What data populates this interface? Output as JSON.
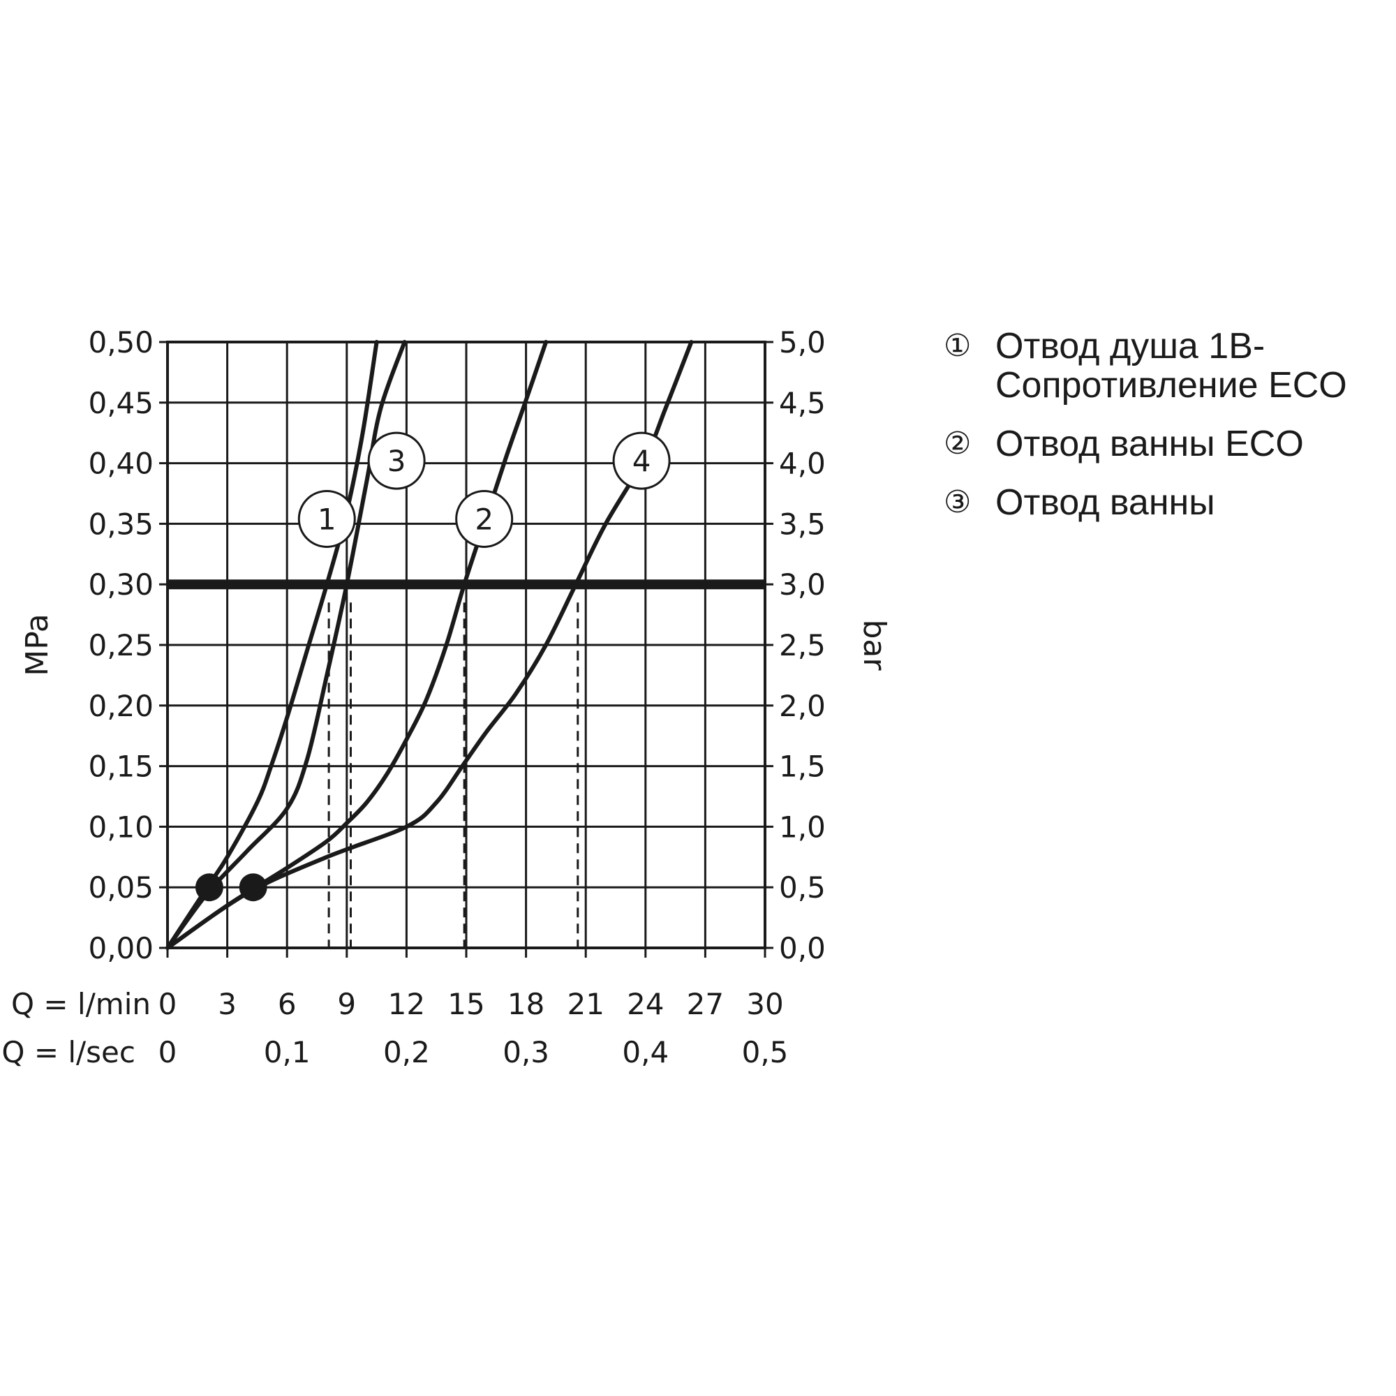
{
  "chart_data": {
    "type": "line",
    "ylabel_left": "MPa",
    "ylabel_right": "bar",
    "y_ticks_left": [
      "0,00",
      "0,05",
      "0,10",
      "0,15",
      "0,20",
      "0,25",
      "0,30",
      "0,35",
      "0,40",
      "0,45",
      "0,50"
    ],
    "y_ticks_right": [
      "0,0",
      "0,5",
      "1,0",
      "1,5",
      "2,0",
      "2,5",
      "3,0",
      "3,5",
      "4,0",
      "4,5",
      "5,0"
    ],
    "x_row1_label": "Q = l/min",
    "x_ticks_lmin": [
      "0",
      "3",
      "6",
      "9",
      "12",
      "15",
      "18",
      "21",
      "24",
      "27",
      "30"
    ],
    "x_row2_label": "Q = l/sec",
    "x_ticks_lsec": [
      {
        "x": 0,
        "label": "0"
      },
      {
        "x": 6,
        "label": "0,1"
      },
      {
        "x": 12,
        "label": "0,2"
      },
      {
        "x": 18,
        "label": "0,3"
      },
      {
        "x": 24,
        "label": "0,4"
      },
      {
        "x": 30,
        "label": "0,5"
      }
    ],
    "xlim": [
      0,
      30
    ],
    "ylim": [
      0,
      0.5
    ],
    "grid": true,
    "reference_line": {
      "y": 0.3
    },
    "series": [
      {
        "name": "1",
        "label_at": [
          8.0,
          0.354
        ],
        "points": [
          [
            0,
            0
          ],
          [
            2,
            0.05
          ],
          [
            3,
            0.075
          ],
          [
            4.5,
            0.12
          ],
          [
            5.2,
            0.15
          ],
          [
            6,
            0.19
          ],
          [
            7,
            0.245
          ],
          [
            8,
            0.3
          ],
          [
            9,
            0.36
          ],
          [
            9.8,
            0.425
          ],
          [
            10.5,
            0.5
          ]
        ],
        "marker": [
          2.1,
          0.05
        ]
      },
      {
        "name": "2",
        "label_at": [
          15.9,
          0.354
        ],
        "points": [
          [
            0,
            0
          ],
          [
            3,
            0.035
          ],
          [
            6,
            0.066
          ],
          [
            8,
            0.088
          ],
          [
            9,
            0.103
          ],
          [
            10,
            0.12
          ],
          [
            11,
            0.143
          ],
          [
            12,
            0.172
          ],
          [
            13,
            0.205
          ],
          [
            14,
            0.25
          ],
          [
            14.9,
            0.3
          ],
          [
            16,
            0.355
          ],
          [
            17,
            0.405
          ],
          [
            18,
            0.452
          ],
          [
            19,
            0.5
          ]
        ],
        "marker": null
      },
      {
        "name": "3",
        "label_at": [
          11.5,
          0.402
        ],
        "points": [
          [
            0,
            0
          ],
          [
            2,
            0.045
          ],
          [
            4,
            0.08
          ],
          [
            6,
            0.115
          ],
          [
            7,
            0.155
          ],
          [
            8,
            0.225
          ],
          [
            9,
            0.3
          ],
          [
            10,
            0.385
          ],
          [
            10.7,
            0.445
          ],
          [
            11.9,
            0.5
          ]
        ],
        "marker": [
          4.3,
          0.05
        ]
      },
      {
        "name": "4",
        "label_at": [
          23.8,
          0.402
        ],
        "points": [
          [
            0,
            0
          ],
          [
            4,
            0.045
          ],
          [
            8,
            0.075
          ],
          [
            12,
            0.1
          ],
          [
            13.5,
            0.12
          ],
          [
            14.8,
            0.15
          ],
          [
            16,
            0.178
          ],
          [
            17.5,
            0.21
          ],
          [
            19,
            0.25
          ],
          [
            20.5,
            0.3
          ],
          [
            22,
            0.35
          ],
          [
            24,
            0.405
          ],
          [
            25,
            0.445
          ],
          [
            26.3,
            0.5
          ]
        ],
        "marker": null
      }
    ],
    "dropdowns": [
      {
        "x": 8.1,
        "y": 0.285
      },
      {
        "x": 9.2,
        "y": 0.285
      },
      {
        "x": 14.9,
        "y": 0.285
      },
      {
        "x": 20.6,
        "y": 0.285
      }
    ]
  },
  "legend": {
    "items": [
      {
        "num": "①",
        "text": "Отвод душа 1В-\nСопротивление  ECO"
      },
      {
        "num": "②",
        "text": "Отвод ванны ECO"
      },
      {
        "num": "③",
        "text": "Отвод ванны"
      }
    ]
  },
  "colors": {
    "ink": "#1a1a1a",
    "background": "#ffffff"
  }
}
